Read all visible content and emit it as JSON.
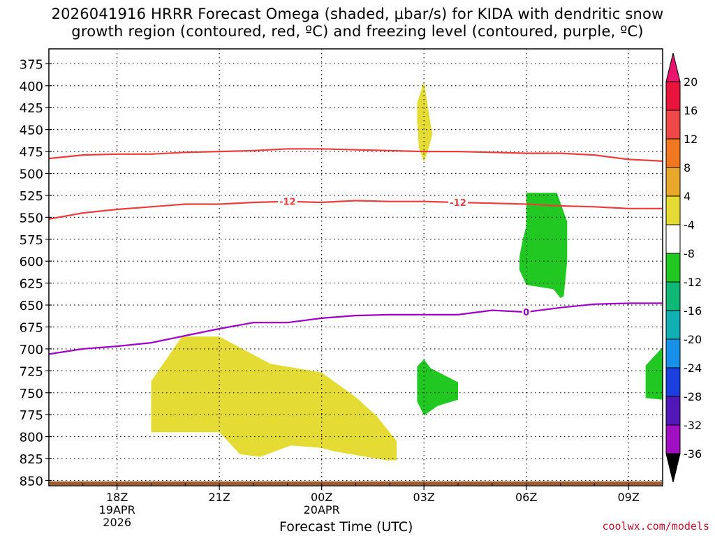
{
  "title": {
    "line1": "2026041916 HRRR Forecast Omega (shaded, μbar/s) for KIDA with dendritic snow",
    "line2": "growth region (contoured, red, ºC) and freezing level (contoured, purple, ºC)"
  },
  "credit": "coolwx.com/models",
  "chart_data": {
    "type": "contour",
    "xlabel": "Forecast Time (UTC)",
    "ylabel": "",
    "x_unit": "hours since 2026-04-19 16Z",
    "xlim": [
      0,
      18
    ],
    "ylim_hpa": [
      358,
      856
    ],
    "y_axis_inverted": true,
    "y_ticks": [
      375,
      400,
      425,
      450,
      475,
      500,
      525,
      550,
      575,
      600,
      625,
      650,
      675,
      700,
      725,
      750,
      775,
      800,
      825,
      850
    ],
    "x_ticks": [
      {
        "x": 2,
        "lines": [
          "18Z",
          "19APR",
          "2026"
        ]
      },
      {
        "x": 5,
        "lines": [
          "21Z"
        ]
      },
      {
        "x": 8,
        "lines": [
          "00Z",
          "20APR"
        ]
      },
      {
        "x": 11,
        "lines": [
          "03Z"
        ]
      },
      {
        "x": 14,
        "lines": [
          "06Z"
        ]
      },
      {
        "x": 17,
        "lines": [
          "09Z"
        ]
      }
    ],
    "grid": true,
    "colorbar": {
      "labels": [
        20,
        16,
        12,
        8,
        4,
        -4,
        -8,
        -12,
        -16,
        -20,
        -24,
        -28,
        -32,
        -36
      ],
      "colors": [
        "#e8143c",
        "#ee4848",
        "#f07820",
        "#e8a82c",
        "#e4dc34",
        "#ffffff",
        "#22c822",
        "#10b878",
        "#10b0b4",
        "#1890e8",
        "#1c40e0",
        "#5018b8",
        "#a010c0",
        "#a8a8a8"
      ],
      "top_arrow_color": "#e8146e",
      "bottom_arrow_color": "#000000"
    },
    "contours": [
      {
        "name": "dgz_warm",
        "color": "#ee3c3c",
        "label": "",
        "points": [
          [
            0,
            483
          ],
          [
            1,
            479
          ],
          [
            2,
            478
          ],
          [
            3,
            478
          ],
          [
            4,
            476
          ],
          [
            5,
            475
          ],
          [
            6,
            474
          ],
          [
            7,
            472
          ],
          [
            8,
            472
          ],
          [
            9,
            473
          ],
          [
            10,
            474
          ],
          [
            11,
            475
          ],
          [
            12,
            475
          ],
          [
            13,
            476
          ],
          [
            14,
            477
          ],
          [
            15,
            477
          ],
          [
            16,
            479
          ],
          [
            17,
            484
          ],
          [
            18,
            486
          ]
        ]
      },
      {
        "name": "dgz_minus12",
        "color": "#ee3c3c",
        "label": "-12",
        "label_x": [
          7,
          12
        ],
        "points": [
          [
            0,
            552
          ],
          [
            1,
            545
          ],
          [
            2,
            541
          ],
          [
            3,
            538
          ],
          [
            4,
            535
          ],
          [
            5,
            535
          ],
          [
            6,
            533
          ],
          [
            7,
            532
          ],
          [
            8,
            533
          ],
          [
            9,
            531
          ],
          [
            10,
            532
          ],
          [
            11,
            532
          ],
          [
            12,
            533
          ],
          [
            13,
            534
          ],
          [
            14,
            535
          ],
          [
            15,
            537
          ],
          [
            16,
            538
          ],
          [
            17,
            540
          ],
          [
            18,
            540
          ]
        ]
      },
      {
        "name": "freezing_level",
        "color": "#a000c8",
        "label": "0",
        "label_x": [
          14
        ],
        "points": [
          [
            0,
            706
          ],
          [
            1,
            700
          ],
          [
            2,
            697
          ],
          [
            3,
            693
          ],
          [
            4,
            685
          ],
          [
            5,
            677
          ],
          [
            6,
            670
          ],
          [
            7,
            670
          ],
          [
            8,
            665
          ],
          [
            9,
            662
          ],
          [
            10,
            661
          ],
          [
            11,
            661
          ],
          [
            12,
            661
          ],
          [
            13,
            656
          ],
          [
            14,
            658
          ],
          [
            15,
            653
          ],
          [
            16,
            649
          ],
          [
            17,
            648
          ],
          [
            18,
            648
          ]
        ]
      }
    ],
    "shaded_regions": [
      {
        "name": "omega_plus4_low",
        "color": "#e4dc34",
        "points": [
          [
            3,
            795
          ],
          [
            3,
            737
          ],
          [
            3.9,
            686
          ],
          [
            5,
            686
          ],
          [
            6.5,
            717
          ],
          [
            8,
            727
          ],
          [
            9,
            755
          ],
          [
            9.6,
            776
          ],
          [
            10.2,
            805
          ],
          [
            10.2,
            827
          ],
          [
            9.9,
            827
          ],
          [
            8.4,
            817
          ],
          [
            8,
            813
          ],
          [
            7.1,
            810
          ],
          [
            6.2,
            823
          ],
          [
            5.6,
            820
          ],
          [
            5,
            795
          ]
        ]
      },
      {
        "name": "omega_plus4_upper",
        "color": "#e4dc34",
        "points": [
          [
            11,
            395
          ],
          [
            11.2,
            445
          ],
          [
            11.25,
            455
          ],
          [
            11.15,
            470
          ],
          [
            11,
            487
          ],
          [
            10.85,
            470
          ],
          [
            10.8,
            440
          ],
          [
            10.8,
            420
          ]
        ]
      },
      {
        "name": "omega_minus4_upper",
        "color": "#22c822",
        "points": [
          [
            14,
            522
          ],
          [
            14.9,
            522
          ],
          [
            15.2,
            555
          ],
          [
            15.2,
            600
          ],
          [
            15.1,
            640
          ],
          [
            15,
            642
          ],
          [
            14.8,
            632
          ],
          [
            14,
            627
          ],
          [
            13.8,
            610
          ],
          [
            13.8,
            595
          ],
          [
            13.9,
            575
          ],
          [
            14,
            560
          ]
        ]
      },
      {
        "name": "omega_minus4_mid",
        "color": "#22c822",
        "points": [
          [
            10.8,
            720
          ],
          [
            11,
            712
          ],
          [
            11.2,
            722
          ],
          [
            12,
            738
          ],
          [
            12,
            758
          ],
          [
            11.4,
            765
          ],
          [
            11,
            776
          ],
          [
            10.8,
            760
          ]
        ]
      },
      {
        "name": "omega_minus4_right",
        "color": "#22c822",
        "points": [
          [
            17.5,
            756
          ],
          [
            17.5,
            719
          ],
          [
            18,
            698
          ],
          [
            18,
            758
          ]
        ]
      }
    ],
    "terrain": {
      "name": "surface",
      "color": "#a25a2c",
      "top_hpa": 851
    }
  }
}
